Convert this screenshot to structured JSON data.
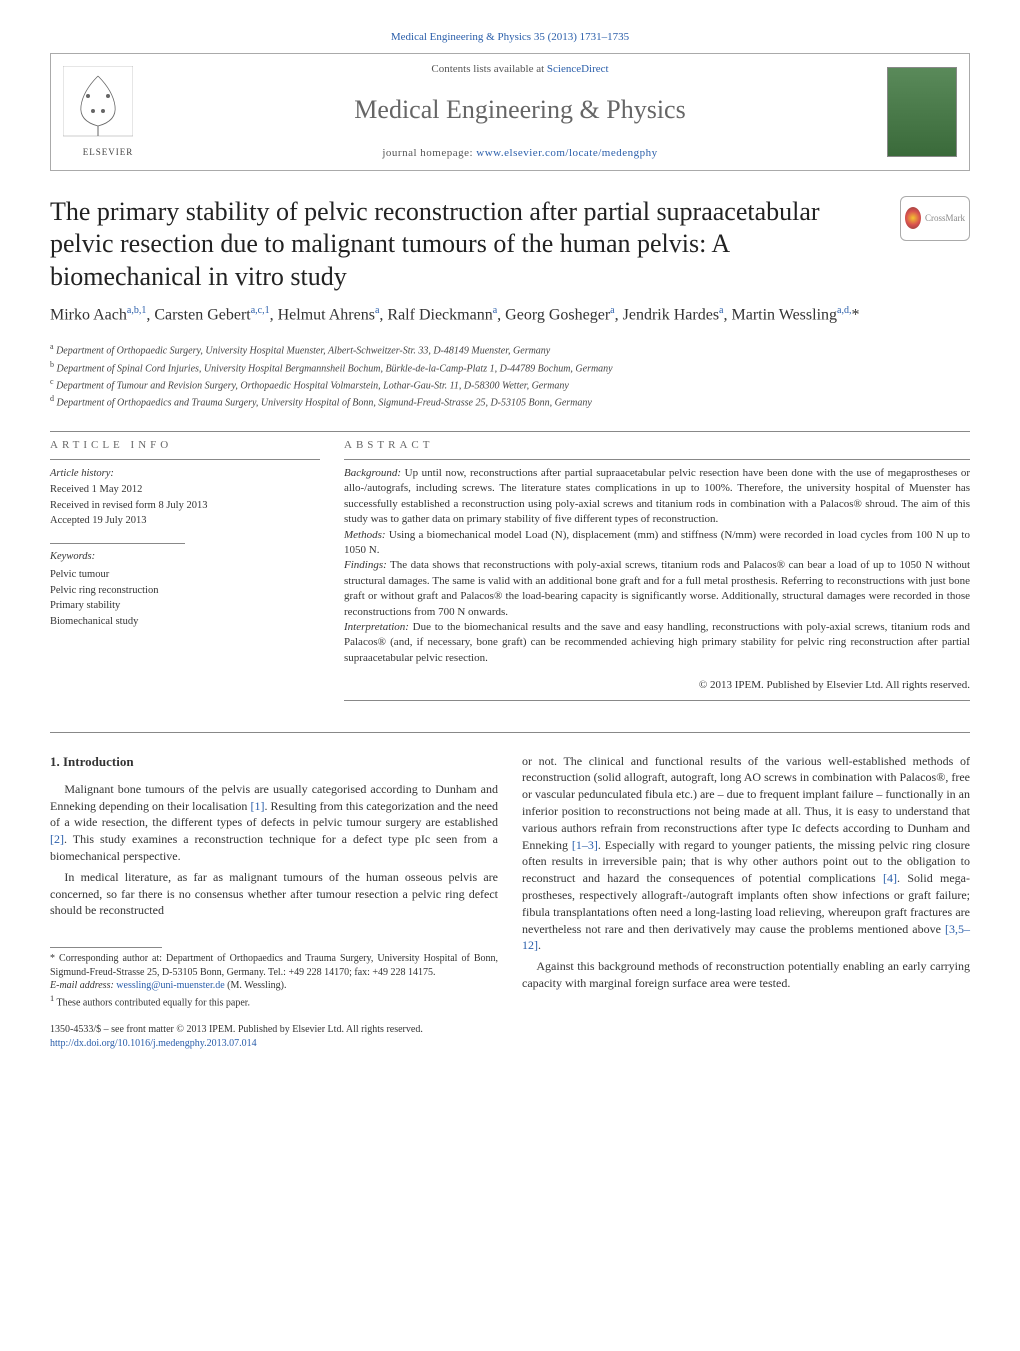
{
  "header": {
    "journal_link": "Medical Engineering & Physics 35 (2013) 1731–1735",
    "contents_line_pre": "Contents lists available at ",
    "contents_link": "ScienceDirect",
    "journal_name": "Medical Engineering & Physics",
    "homepage_pre": "journal homepage: ",
    "homepage_link": "www.elsevier.com/locate/medengphy",
    "elsevier_label": "ELSEVIER"
  },
  "crossmark": {
    "label": "CrossMark"
  },
  "article": {
    "title": "The primary stability of pelvic reconstruction after partial supraacetabular pelvic resection due to malignant tumours of the human pelvis: A biomechanical in vitro study",
    "authors_html": "Mirko Aach<sup>a,b,1</sup>, Carsten Gebert<sup>a,c,1</sup>, Helmut Ahrens<sup>a</sup>, Ralf Dieckmann<sup>a</sup>, Georg Gosheger<sup>a</sup>, Jendrik Hardes<sup>a</sup>, Martin Wessling<sup>a,d,</sup>*",
    "affiliations": {
      "a": "Department of Orthopaedic Surgery, University Hospital Muenster, Albert-Schweitzer-Str. 33, D-48149 Muenster, Germany",
      "b": "Department of Spinal Cord Injuries, University Hospital Bergmannsheil Bochum, Bürkle-de-la-Camp-Platz 1, D-44789 Bochum, Germany",
      "c": "Department of Tumour and Revision Surgery, Orthopaedic Hospital Volmarstein, Lothar-Gau-Str. 11, D-58300 Wetter, Germany",
      "d": "Department of Orthopaedics and Trauma Surgery, University Hospital of Bonn, Sigmund-Freud-Strasse 25, D-53105 Bonn, Germany"
    }
  },
  "info": {
    "heading": "article info",
    "history_label": "Article history:",
    "received": "Received 1 May 2012",
    "revised": "Received in revised form 8 July 2013",
    "accepted": "Accepted 19 July 2013",
    "keywords_label": "Keywords:",
    "keywords": [
      "Pelvic tumour",
      "Pelvic ring reconstruction",
      "Primary stability",
      "Biomechanical study"
    ]
  },
  "abstract": {
    "heading": "abstract",
    "background_label": "Background:",
    "background": " Up until now, reconstructions after partial supraacetabular pelvic resection have been done with the use of megaprostheses or allo-/autografs, including screws. The literature states complications in up to 100%. Therefore, the university hospital of Muenster has successfully established a reconstruction using poly-axial screws and titanium rods in combination with a Palacos® shroud. The aim of this study was to gather data on primary stability of five different types of reconstruction.",
    "methods_label": "Methods:",
    "methods": " Using a biomechanical model Load (N), displacement (mm) and stiffness (N/mm) were recorded in load cycles from 100 N up to 1050 N.",
    "findings_label": "Findings:",
    "findings": " The data shows that reconstructions with poly-axial screws, titanium rods and Palacos® can bear a load of up to 1050 N without structural damages. The same is valid with an additional bone graft and for a full metal prosthesis. Referring to reconstructions with just bone graft or without graft and Palacos® the load-bearing capacity is significantly worse. Additionally, structural damages were recorded in those reconstructions from 700 N onwards.",
    "interpretation_label": "Interpretation:",
    "interpretation": " Due to the biomechanical results and the save and easy handling, reconstructions with poly-axial screws, titanium rods and Palacos® (and, if necessary, bone graft) can be recommended achieving high primary stability for pelvic ring reconstruction after partial supraacetabular pelvic resection.",
    "copyright": "© 2013 IPEM. Published by Elsevier Ltd. All rights reserved."
  },
  "intro": {
    "heading": "1.  Introduction",
    "p1": "Malignant bone tumours of the pelvis are usually categorised according to Dunham and Enneking depending on their localisation ",
    "p1_ref": "[1]",
    "p1_after": ". Resulting from this categorization and the need of a wide resection, the different types of defects in pelvic tumour surgery are established ",
    "p1_ref2": "[2]",
    "p1_after2": ". This study examines a reconstruction technique for a defect type pIc seen from a biomechanical perspective.",
    "p2": "In medical literature, as far as malignant tumours of the human osseous pelvis are concerned, so far there is no consensus whether after tumour resection a pelvic ring defect should be reconstructed",
    "r1": "or not. The clinical and functional results of the various well-established methods of reconstruction (solid allograft, autograft, long AO screws in combination with Palacos®, free or vascular pedunculated fibula etc.) are – due to frequent implant failure – functionally in an inferior position to reconstructions not being made at all. Thus, it is easy to understand that various authors refrain from reconstructions after type Ic defects according to Dunham and Enneking ",
    "r1_ref": "[1–3]",
    "r1_after": ". Especially with regard to younger patients, the missing pelvic ring closure often results in irreversible pain; that is why other authors point out to the obligation to reconstruct and hazard the consequences of potential complications ",
    "r1_ref2": "[4]",
    "r1_after2": ". Solid mega-prostheses, respectively allograft-/autograft implants often show infections or graft failure; fibula transplantations often need a long-lasting load relieving, whereupon graft fractures are nevertheless not rare and then derivatively may cause the problems mentioned above ",
    "r1_ref3": "[3,5–12]",
    "r1_after3": ".",
    "r2": "Against this background methods of reconstruction potentially enabling an early carrying capacity with marginal foreign surface area were tested."
  },
  "footnotes": {
    "corr": "* Corresponding author at: Department of Orthopaedics and Trauma Surgery, University Hospital of Bonn, Sigmund-Freud-Strasse 25, D-53105 Bonn, Germany. Tel.: +49 228 14170; fax: +49 228 14175.",
    "email_label": "E-mail address: ",
    "email": "wessling@uni-muenster.de",
    "email_after": " (M. Wessling).",
    "shared": "These authors contributed equally for this paper.",
    "shared_sup": "1"
  },
  "footer": {
    "line1": "1350-4533/$ – see front matter © 2013 IPEM. Published by Elsevier Ltd. All rights reserved.",
    "doi": "http://dx.doi.org/10.1016/j.medengphy.2013.07.014"
  },
  "colors": {
    "link": "#2a5eaa",
    "text": "#333333",
    "muted": "#666666",
    "border": "#888888"
  },
  "typography": {
    "body_pt": 13,
    "title_pt": 26,
    "authors_pt": 16,
    "small_pt": 10,
    "journal_name_pt": 26
  }
}
